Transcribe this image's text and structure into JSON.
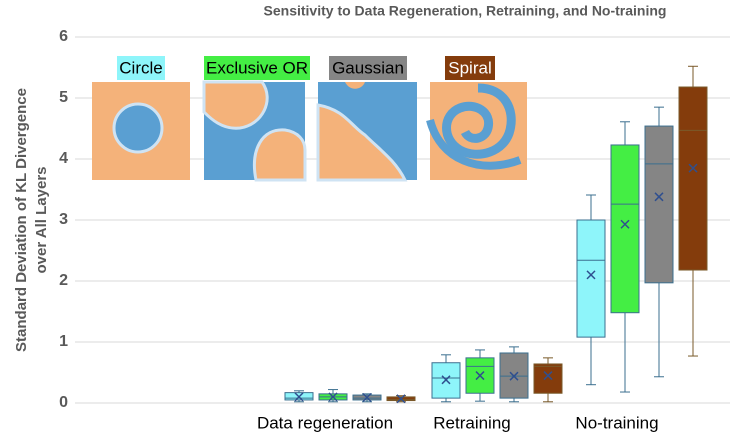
{
  "chart_data": {
    "type": "box",
    "title": "Sensitivity to Data Regeneration, Retraining, and No-training",
    "ylabel": [
      "Standard Deviation of KL Divergence",
      "over All Layers"
    ],
    "categories": [
      "Data regeneration",
      "Retraining",
      "No-training"
    ],
    "ylim": [
      0,
      6
    ],
    "yticks": [
      0,
      1,
      2,
      3,
      4,
      5,
      6
    ],
    "grid": true,
    "series": [
      {
        "name": "Circle",
        "color": "#8ef5fa",
        "values": [
          {
            "min": 0.02,
            "q1": 0.05,
            "median": 0.08,
            "q3": 0.17,
            "max": 0.2,
            "mean": 0.1
          },
          {
            "min": 0.02,
            "q1": 0.08,
            "median": 0.41,
            "q3": 0.66,
            "max": 0.79,
            "mean": 0.38
          },
          {
            "min": 0.3,
            "q1": 1.08,
            "median": 2.34,
            "q3": 3.0,
            "max": 3.41,
            "mean": 2.1
          }
        ]
      },
      {
        "name": "Exclusive OR",
        "color": "#44ee44",
        "values": [
          {
            "min": 0.02,
            "q1": 0.05,
            "median": 0.1,
            "q3": 0.15,
            "max": 0.22,
            "mean": 0.1
          },
          {
            "min": 0.03,
            "q1": 0.16,
            "median": 0.6,
            "q3": 0.74,
            "max": 0.87,
            "mean": 0.45
          },
          {
            "min": 0.18,
            "q1": 1.48,
            "median": 3.26,
            "q3": 4.23,
            "max": 4.61,
            "mean": 2.93
          }
        ]
      },
      {
        "name": "Gaussian",
        "color": "#858585",
        "values": [
          {
            "min": 0.02,
            "q1": 0.05,
            "median": 0.08,
            "q3": 0.13,
            "max": 0.15,
            "mean": 0.09
          },
          {
            "min": 0.02,
            "q1": 0.08,
            "median": 0.44,
            "q3": 0.82,
            "max": 0.92,
            "mean": 0.44
          },
          {
            "min": 0.43,
            "q1": 1.97,
            "median": 3.92,
            "q3": 4.54,
            "max": 4.85,
            "mean": 3.38
          }
        ]
      },
      {
        "name": "Spiral",
        "color": "#843c0c",
        "values": [
          {
            "min": 0.02,
            "q1": 0.04,
            "median": 0.06,
            "q3": 0.1,
            "max": 0.12,
            "mean": 0.07
          },
          {
            "min": 0.02,
            "q1": 0.16,
            "median": 0.6,
            "q3": 0.64,
            "max": 0.74,
            "mean": 0.45
          },
          {
            "min": 0.77,
            "q1": 2.18,
            "median": 4.47,
            "q3": 5.18,
            "max": 5.52,
            "mean": 3.85
          }
        ]
      }
    ]
  }
}
